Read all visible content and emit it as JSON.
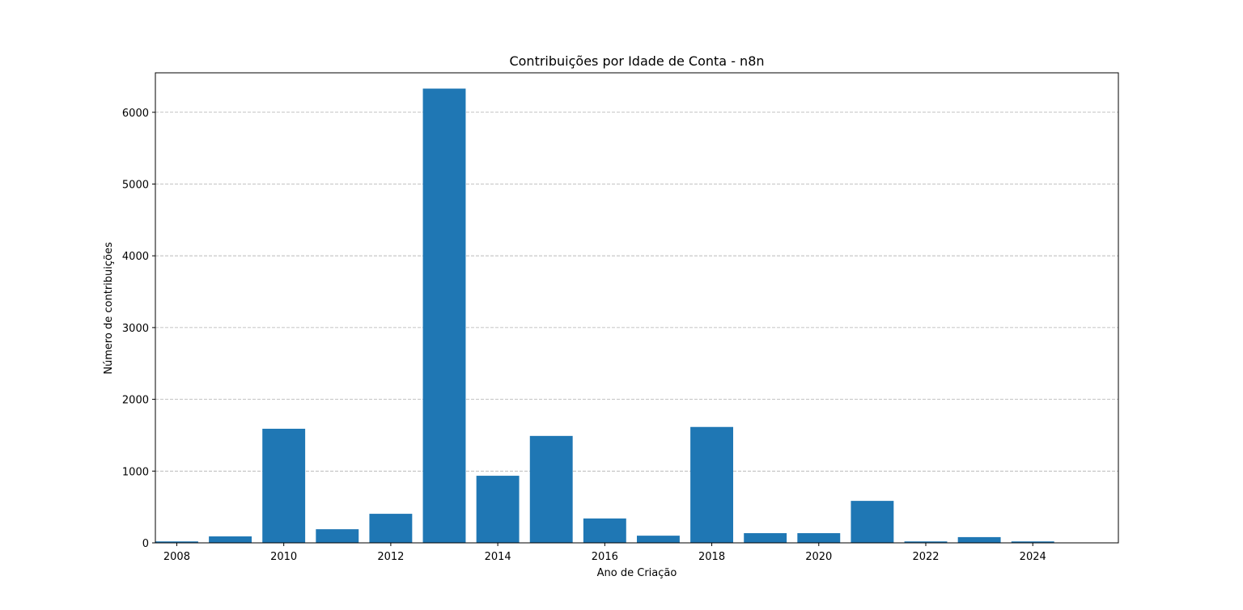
{
  "chart_data": {
    "type": "bar",
    "title": "Contribuições por Idade de Conta - n8n",
    "xlabel": "Ano de Criação",
    "ylabel": "Número de contribuições",
    "x": [
      2008,
      2009,
      2010,
      2011,
      2012,
      2013,
      2014,
      2015,
      2016,
      2017,
      2018,
      2019,
      2020,
      2021,
      2022,
      2023,
      2024
    ],
    "values": [
      20,
      90,
      1590,
      190,
      405,
      6330,
      935,
      1490,
      340,
      100,
      1615,
      135,
      135,
      585,
      20,
      80,
      20
    ],
    "x_ticks": [
      "2008",
      "2010",
      "2012",
      "2014",
      "2016",
      "2018",
      "2020",
      "2022",
      "2024"
    ],
    "y_ticks": [
      "0",
      "1000",
      "2000",
      "3000",
      "4000",
      "5000",
      "6000"
    ],
    "xlim": [
      2007.6,
      2025.6
    ],
    "ylim": [
      0,
      6550
    ],
    "grid": "y-dashed",
    "bar_color": "#1f77b4",
    "grid_color": "#b0b0b0"
  }
}
